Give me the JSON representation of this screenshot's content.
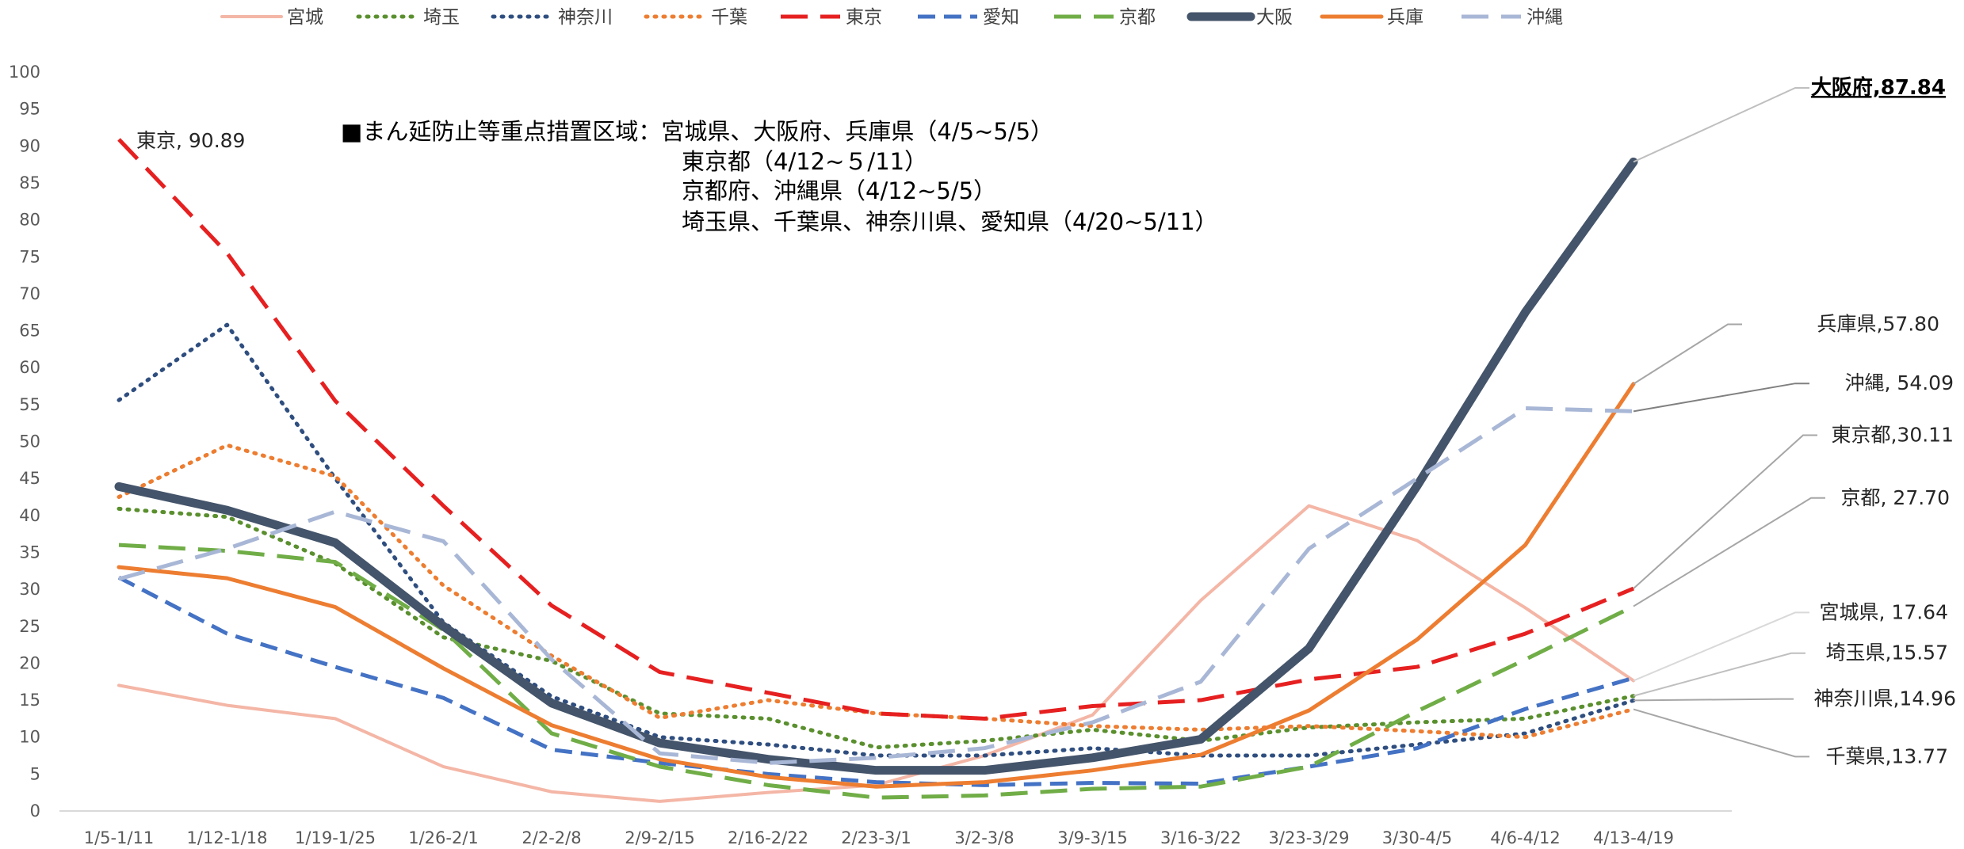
{
  "chart_data": {
    "type": "line",
    "title": "",
    "xlabel": "",
    "ylabel": "",
    "ylim": [
      0,
      100
    ],
    "yticks": [
      0,
      5,
      10,
      15,
      20,
      25,
      30,
      35,
      40,
      45,
      50,
      55,
      60,
      65,
      70,
      75,
      80,
      85,
      90,
      95,
      100
    ],
    "grid": false,
    "legend_position": "top",
    "categories": [
      "1/5-1/11",
      "1/12-1/18",
      "1/19-1/25",
      "1/26-2/1",
      "2/2-2/8",
      "2/9-2/15",
      "2/16-2/22",
      "2/23-3/1",
      "3/2-3/8",
      "3/9-3/15",
      "3/16-3/22",
      "3/23-3/29",
      "3/30-4/5",
      "4/6-4/12",
      "4/13-4/19"
    ],
    "series": [
      {
        "name": "宮城",
        "color": "#F4B6A6",
        "dash": "solid",
        "width": 4,
        "values": [
          17.0,
          14.3,
          12.5,
          6.0,
          2.6,
          1.3,
          2.5,
          3.5,
          7.5,
          13.0,
          28.5,
          41.3,
          36.6,
          27.5,
          17.64
        ]
      },
      {
        "name": "埼玉",
        "color": "#5A8F2E",
        "dash": "dot",
        "width": 5,
        "values": [
          40.9,
          39.8,
          33.5,
          23.5,
          20.3,
          13.2,
          12.5,
          8.6,
          9.5,
          11.0,
          9.5,
          11.3,
          12.0,
          12.5,
          15.57
        ]
      },
      {
        "name": "神奈川",
        "color": "#2F4E7F",
        "dash": "dot",
        "width": 5,
        "values": [
          55.6,
          65.8,
          45.0,
          25.5,
          15.5,
          10.0,
          9.0,
          7.5,
          7.5,
          8.5,
          7.5,
          7.5,
          9.0,
          10.5,
          14.96
        ]
      },
      {
        "name": "千葉",
        "color": "#ED7D31",
        "dash": "dot",
        "width": 5,
        "values": [
          42.5,
          49.5,
          45.3,
          30.5,
          21.0,
          12.6,
          15.0,
          13.2,
          12.5,
          11.5,
          11.0,
          11.5,
          10.8,
          10.0,
          13.77
        ]
      },
      {
        "name": "東京",
        "color": "#E62020",
        "dash": "longdash",
        "width": 5,
        "values": [
          90.89,
          75.5,
          55.5,
          41.3,
          27.8,
          18.8,
          16.0,
          13.2,
          12.5,
          14.2,
          15.0,
          17.8,
          19.5,
          24.0,
          30.11
        ]
      },
      {
        "name": "愛知",
        "color": "#4472C4",
        "dash": "dash",
        "width": 5,
        "values": [
          31.6,
          24.0,
          19.5,
          15.3,
          8.3,
          6.5,
          5.0,
          3.9,
          3.5,
          3.8,
          3.7,
          6.0,
          8.5,
          13.8,
          18.0
        ]
      },
      {
        "name": "京都",
        "color": "#70AD47",
        "dash": "longdash",
        "width": 5,
        "values": [
          36.0,
          35.2,
          33.7,
          24.5,
          10.5,
          6.0,
          3.5,
          1.8,
          2.1,
          3.0,
          3.3,
          6.0,
          13.5,
          20.5,
          27.7
        ]
      },
      {
        "name": "大阪",
        "color": "#44546A",
        "dash": "solid",
        "width": 11,
        "values": [
          43.9,
          40.7,
          36.3,
          25.0,
          14.6,
          9.2,
          7.0,
          5.5,
          5.5,
          7.2,
          9.7,
          22.0,
          44.0,
          67.5,
          87.84
        ]
      },
      {
        "name": "兵庫",
        "color": "#ED7D31",
        "dash": "solid",
        "width": 5,
        "values": [
          33.0,
          31.5,
          27.6,
          19.3,
          11.6,
          7.0,
          4.6,
          3.3,
          3.9,
          5.5,
          7.6,
          13.6,
          23.2,
          36.0,
          57.8
        ]
      },
      {
        "name": "沖縄",
        "color": "#A9B7D6",
        "dash": "longdash",
        "width": 5,
        "values": [
          31.4,
          35.5,
          40.5,
          36.5,
          20.5,
          7.8,
          6.5,
          7.2,
          8.5,
          12.0,
          17.5,
          35.5,
          45.0,
          54.5,
          54.09
        ]
      }
    ],
    "annotations": {
      "tokyo_start": "東京, 90.89",
      "callouts": [
        {
          "text": "大阪府,87.84",
          "series": "大阪",
          "bold": true,
          "label_y": 97,
          "color": "#BFBFBF"
        },
        {
          "text": "兵庫県,57.80",
          "series": "兵庫",
          "bold": false,
          "label_y": 65,
          "color": "#A6A6A6"
        },
        {
          "text": "沖縄, 54.09",
          "series": "沖縄",
          "bold": false,
          "label_y": 57,
          "color": "#808080"
        },
        {
          "text": "東京都,30.11",
          "series": "東京",
          "bold": false,
          "label_y": 50,
          "color": "#A6A6A6"
        },
        {
          "text": "京都, 27.70",
          "series": "京都",
          "bold": false,
          "label_y": 41.5,
          "color": "#A6A6A6"
        },
        {
          "text": "宮城県, 17.64",
          "series": "宮城",
          "bold": false,
          "label_y": 26,
          "color": "#D9D9D9"
        },
        {
          "text": "埼玉県,15.57",
          "series": "埼玉",
          "bold": false,
          "label_y": 20.5,
          "color": "#BFBFBF"
        },
        {
          "text": "神奈川県,14.96",
          "series": "神奈川",
          "bold": false,
          "label_y": 14.3,
          "color": "#A6A6A6"
        },
        {
          "text": "千葉県,13.77",
          "series": "千葉",
          "bold": false,
          "label_y": 6.5,
          "color": "#A6A6A6"
        }
      ],
      "note": [
        "■まん延防止等重点措置区域：宮城県、大阪府、兵庫県（4/5~5/5）",
        "東京都（4/12~５/11）",
        "京都府、沖縄県（4/12~5/5）",
        "埼玉県、千葉県、神奈川県、愛知県（4/20~5/11）"
      ]
    }
  }
}
